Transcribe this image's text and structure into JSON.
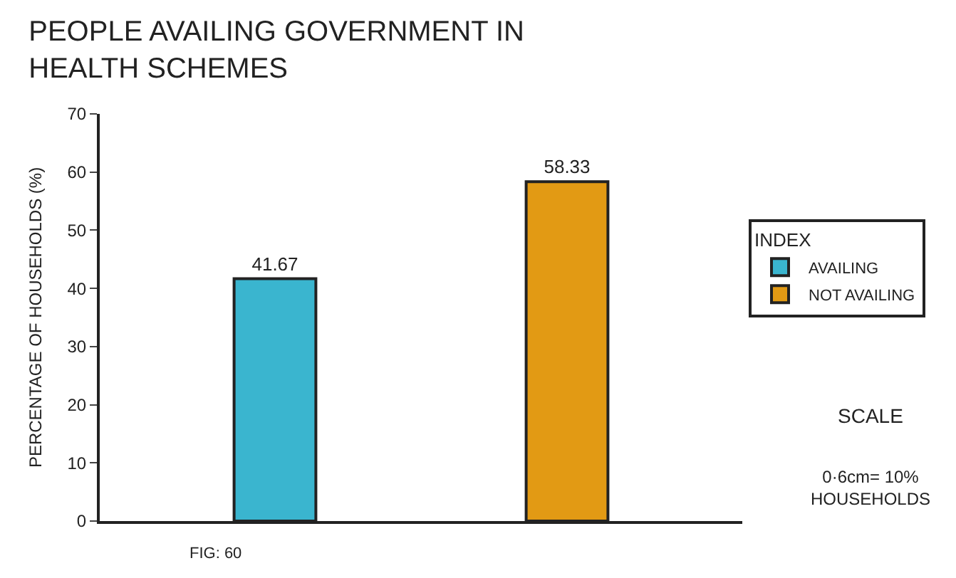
{
  "chart_data": {
    "type": "bar",
    "title": "PEOPLE AVAILING GOVERNMENT IN HEALTH SCHEMES",
    "ylabel": "PERCENTAGE OF HOUSEHOLDS (%)",
    "legend_title": "INDEX",
    "categories": [
      null,
      null
    ],
    "series": [
      {
        "name": "AVAILING",
        "color": "#3ab5cf",
        "values": [
          41.67,
          null
        ]
      },
      {
        "name": "NOT AVAILING",
        "color": "#e29a14",
        "values": [
          null,
          58.33
        ]
      }
    ],
    "ylim": [
      0,
      70
    ],
    "yticks": [
      0,
      10,
      20,
      30,
      40,
      50,
      60,
      70
    ],
    "data_labels": true,
    "legend": "right",
    "annotations": [
      "SCALE",
      "0·6cm= 10% HOUSEHOLDS",
      "FIG: 60"
    ]
  }
}
